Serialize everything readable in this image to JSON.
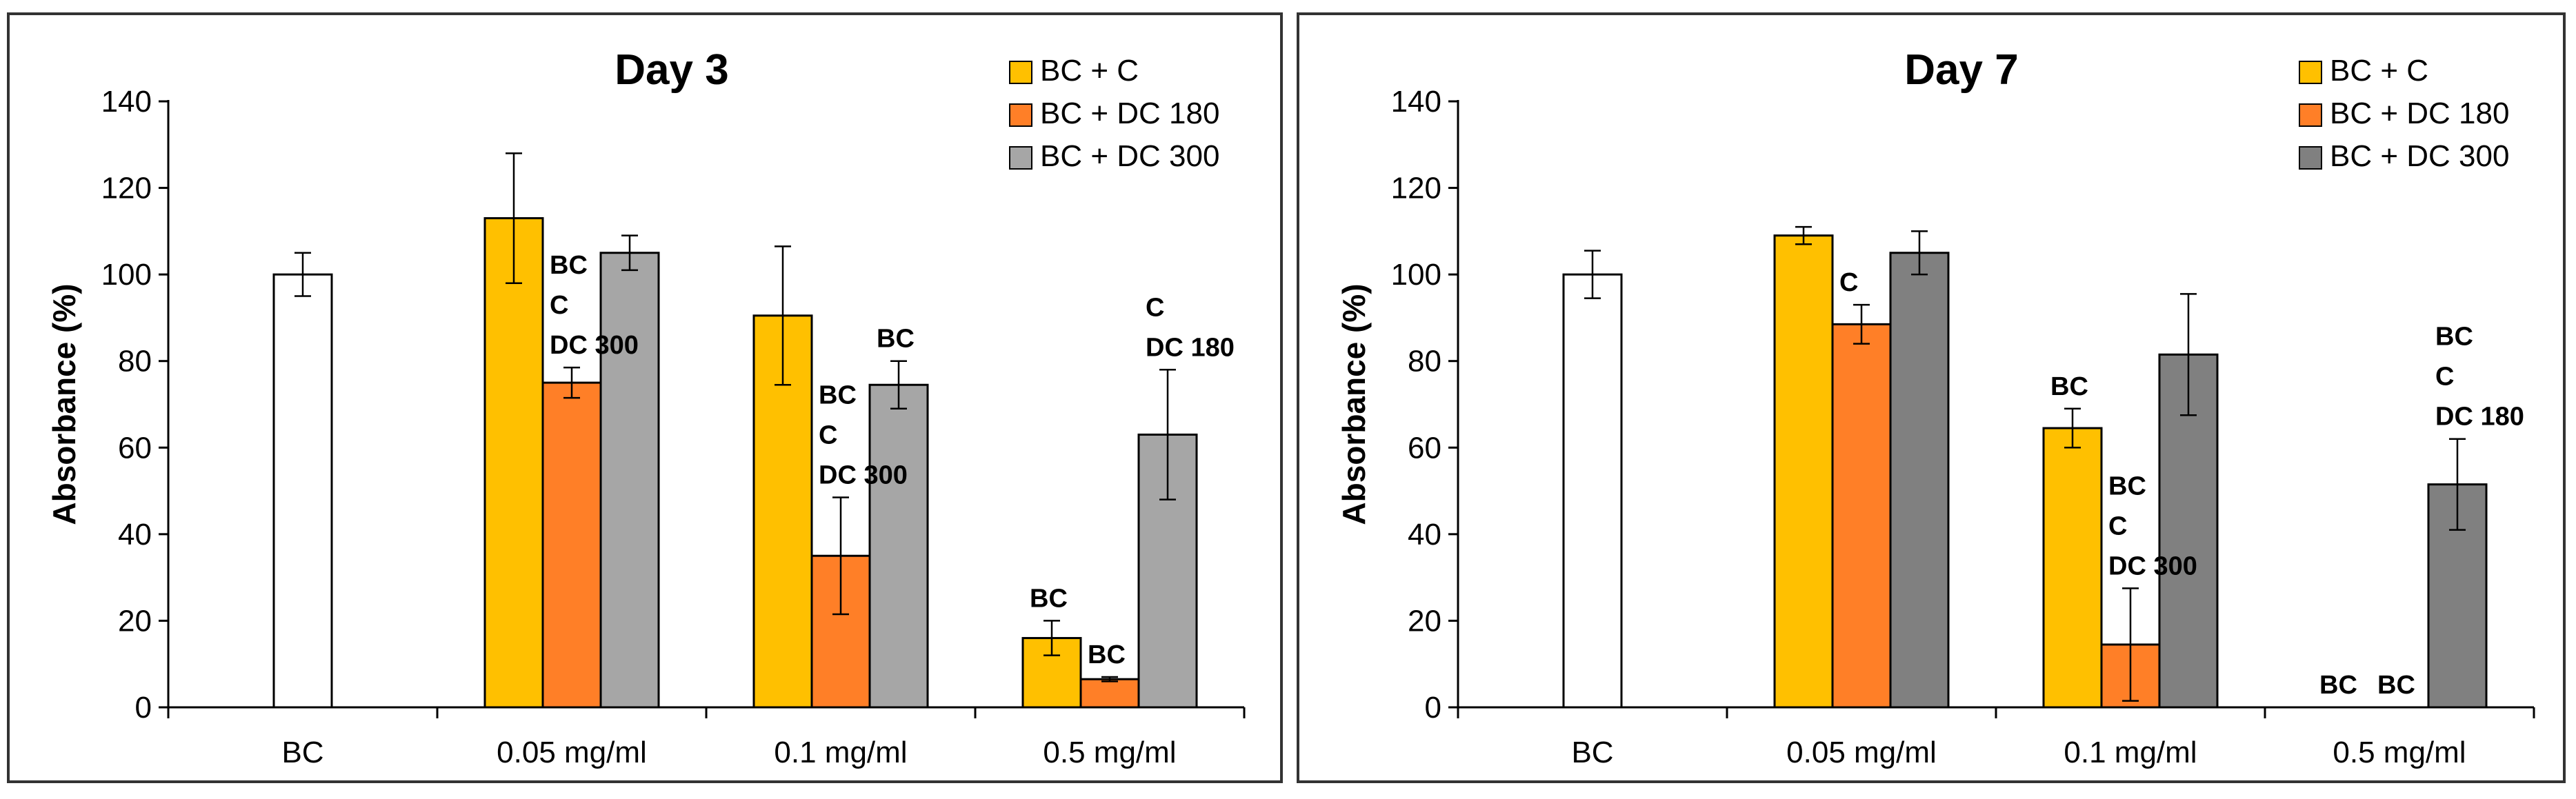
{
  "chart_data": [
    {
      "type": "bar",
      "title": "Day 3",
      "ylabel": "Absorbance (%)",
      "xlabel": "",
      "ylim": [
        0,
        140
      ],
      "yticks": [
        0,
        20,
        40,
        60,
        80,
        100,
        120,
        140
      ],
      "grid": false,
      "legend_position": "top-right",
      "categories": [
        "BC",
        "0.05 mg/ml",
        "0.1 mg/ml",
        "0.5 mg/ml"
      ],
      "control": {
        "category": "BC",
        "value": 100,
        "error": 5,
        "color": "#ffffff"
      },
      "series": [
        {
          "name": "BC + C",
          "color": "#FFC000",
          "values": [
            null,
            113,
            90.5,
            16
          ],
          "errors": [
            null,
            15,
            16,
            4
          ]
        },
        {
          "name": "BC + DC 180",
          "color": "#FF7F27",
          "values": [
            null,
            75,
            35,
            6.5
          ],
          "errors": [
            null,
            3.5,
            13.5,
            0.5
          ]
        },
        {
          "name": "BC + DC 300",
          "color": "#A6A6A6",
          "values": [
            null,
            105,
            74.5,
            63
          ],
          "errors": [
            null,
            4,
            5.5,
            15
          ]
        }
      ],
      "annotations": [
        {
          "category": 1,
          "series": 1,
          "lines": [
            "BC",
            "C",
            "DC 300"
          ]
        },
        {
          "category": 2,
          "series": 1,
          "lines": [
            "BC",
            "C",
            "DC 300"
          ]
        },
        {
          "category": 2,
          "series": 2,
          "lines": [
            "BC"
          ]
        },
        {
          "category": 3,
          "series": 0,
          "lines": [
            "BC"
          ]
        },
        {
          "category": 3,
          "series": 1,
          "lines": [
            "BC"
          ]
        },
        {
          "category": 3,
          "series": 2,
          "lines": [
            "C",
            "DC 180"
          ]
        }
      ]
    },
    {
      "type": "bar",
      "title": "Day 7",
      "ylabel": "Absorbance (%)",
      "xlabel": "",
      "ylim": [
        0,
        140
      ],
      "yticks": [
        0,
        20,
        40,
        60,
        80,
        100,
        120,
        140
      ],
      "grid": false,
      "legend_position": "top-right",
      "categories": [
        "BC",
        "0.05 mg/ml",
        "0.1 mg/ml",
        "0.5 mg/ml"
      ],
      "control": {
        "category": "BC",
        "value": 100,
        "error": 5.5,
        "color": "#ffffff"
      },
      "series": [
        {
          "name": "BC + C",
          "color": "#FFC000",
          "values": [
            null,
            109,
            64.5,
            0
          ],
          "errors": [
            null,
            2,
            4.5,
            0
          ]
        },
        {
          "name": "BC + DC 180",
          "color": "#FF7F27",
          "values": [
            null,
            88.5,
            14.5,
            0
          ],
          "errors": [
            null,
            4.5,
            13,
            0
          ]
        },
        {
          "name": "BC + DC 300",
          "color": "#808080",
          "values": [
            null,
            105,
            81.5,
            51.5
          ],
          "errors": [
            null,
            5,
            14,
            10.5
          ]
        }
      ],
      "annotations": [
        {
          "category": 1,
          "series": 1,
          "lines": [
            "C"
          ]
        },
        {
          "category": 2,
          "series": 0,
          "lines": [
            "BC"
          ]
        },
        {
          "category": 2,
          "series": 1,
          "lines": [
            "BC",
            "C",
            "DC 300"
          ]
        },
        {
          "category": 3,
          "series": 0,
          "lines": [
            "BC"
          ]
        },
        {
          "category": 3,
          "series": 1,
          "lines": [
            "BC"
          ]
        },
        {
          "category": 3,
          "series": 2,
          "lines": [
            "BC",
            "C",
            "DC 180"
          ]
        }
      ]
    }
  ]
}
